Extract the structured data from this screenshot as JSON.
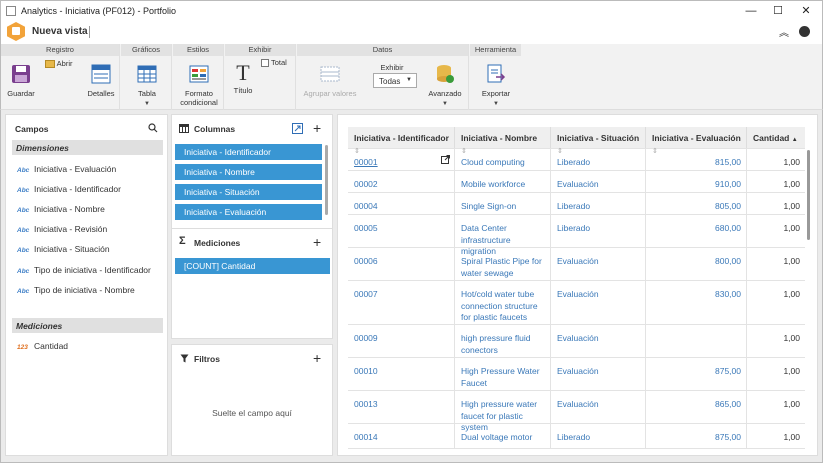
{
  "window": {
    "title": "Analytics - Iniciativa (PF012) - Portfolio"
  },
  "header": {
    "view_name": "Nueva vista"
  },
  "ribbon": {
    "groups": [
      {
        "title": "Registro"
      },
      {
        "title": "Gráficos"
      },
      {
        "title": "Estilos"
      },
      {
        "title": "Exhibir"
      },
      {
        "title": "Datos"
      },
      {
        "title": "Herramienta"
      }
    ],
    "guardar": "Guardar",
    "abrir": "Abrir",
    "detalles": "Detalles",
    "tabla": "Tabla",
    "formato_line1": "Formato",
    "formato_line2": "condicional",
    "titulo": "Título",
    "total": "Total",
    "agrupar": "Agrupar valores",
    "exhibir_label": "Exhibir",
    "exhibir_value": "Todas",
    "avanzado": "Avanzado",
    "exportar": "Exportar"
  },
  "campos": {
    "title": "Campos",
    "dimensiones_title": "Dimensiones",
    "dimensiones": [
      {
        "type": "Abc",
        "label": "Iniciativa - Evaluación"
      },
      {
        "type": "Abc",
        "label": "Iniciativa - Identificador"
      },
      {
        "type": "Abc",
        "label": "Iniciativa - Nombre"
      },
      {
        "type": "Abc",
        "label": "Iniciativa - Revisión"
      },
      {
        "type": "Abc",
        "label": "Iniciativa - Situación"
      },
      {
        "type": "Abc",
        "label": "Tipo de iniciativa - Identificador"
      },
      {
        "type": "Abc",
        "label": "Tipo de iniciativa - Nombre"
      }
    ],
    "mediciones_title": "Mediciones",
    "mediciones": [
      {
        "type": "123",
        "label": "Cantidad"
      }
    ]
  },
  "columnas": {
    "title": "Columnas",
    "items": [
      "Iniciativa - Identificador",
      "Iniciativa - Nombre",
      "Iniciativa - Situación",
      "Iniciativa - Evaluación"
    ]
  },
  "mediciones_panel": {
    "title": "Mediciones",
    "items": [
      "[COUNT] Cantidad"
    ]
  },
  "filtros": {
    "title": "Filtros",
    "drop_hint": "Suelte el campo aquí"
  },
  "table": {
    "headers": [
      "Iniciativa - Identificador",
      "Iniciativa - Nombre",
      "Iniciativa - Situación",
      "Iniciativa - Evaluación",
      "Cantidad"
    ],
    "rows": [
      {
        "id": "00001",
        "name": "Cloud computing",
        "status": "Liberado",
        "eval": "815,00",
        "qty": "1,00"
      },
      {
        "id": "00002",
        "name": "Mobile workforce",
        "status": "Evaluación",
        "eval": "910,00",
        "qty": "1,00"
      },
      {
        "id": "00004",
        "name": "Single Sign-on",
        "status": "Liberado",
        "eval": "805,00",
        "qty": "1,00"
      },
      {
        "id": "00005",
        "name": "Data Center infrastructure migration",
        "status": "Liberado",
        "eval": "680,00",
        "qty": "1,00"
      },
      {
        "id": "00006",
        "name": "Spiral Plastic Pipe for water sewage",
        "status": "Evaluación",
        "eval": "800,00",
        "qty": "1,00"
      },
      {
        "id": "00007",
        "name": "Hot/cold water tube connection structure for plastic faucets",
        "status": "Evaluación",
        "eval": "830,00",
        "qty": "1,00"
      },
      {
        "id": "00009",
        "name": "high pressure fluid conectors",
        "status": "Evaluación",
        "eval": "",
        "qty": "1,00"
      },
      {
        "id": "00010",
        "name": "High Pressure Water Faucet",
        "status": "Evaluación",
        "eval": "875,00",
        "qty": "1,00"
      },
      {
        "id": "00013",
        "name": "High pressure water faucet for plastic system",
        "status": "Evaluación",
        "eval": "865,00",
        "qty": "1,00"
      },
      {
        "id": "00014",
        "name": "Dual voltage motor",
        "status": "Liberado",
        "eval": "875,00",
        "qty": "1,00"
      }
    ]
  }
}
